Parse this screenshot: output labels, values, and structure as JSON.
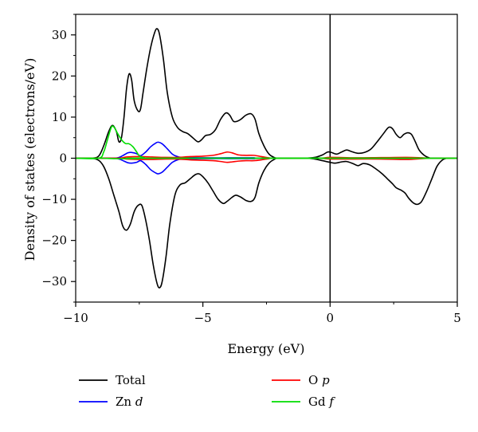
{
  "chart_data": {
    "type": "line",
    "xlabel": "Energy (eV)",
    "ylabel": "Density of states (electrons/eV)",
    "xlim": [
      -10,
      5
    ],
    "ylim": [
      -35,
      35
    ],
    "x_ticks": [
      -10,
      -5,
      0,
      5
    ],
    "y_ticks": [
      -30,
      -20,
      -10,
      0,
      10,
      20,
      30
    ],
    "vertical_line_x": 0,
    "legend": {
      "placement": "bottom",
      "entries": [
        {
          "label": "Total",
          "color": "#000000"
        },
        {
          "label": "Zn d",
          "label_text": "Zn ",
          "label_italic": "d",
          "color": "#0000ff"
        },
        {
          "label": "O p",
          "label_text": "O ",
          "label_italic": "p",
          "color": "#ff0000"
        },
        {
          "label": "Gd f",
          "label_text": "Gd ",
          "label_italic": "f",
          "color": "#00dd00"
        }
      ]
    },
    "series": [
      {
        "name": "Total",
        "color": "#000000",
        "up": [
          [
            -10,
            0
          ],
          [
            -9.4,
            0
          ],
          [
            -9.1,
            0.5
          ],
          [
            -8.9,
            3
          ],
          [
            -8.7,
            6.5
          ],
          [
            -8.55,
            8
          ],
          [
            -8.4,
            6.5
          ],
          [
            -8.3,
            4
          ],
          [
            -8.2,
            5
          ],
          [
            -8.1,
            10
          ],
          [
            -8.0,
            17
          ],
          [
            -7.9,
            20.5
          ],
          [
            -7.8,
            19
          ],
          [
            -7.7,
            14
          ],
          [
            -7.55,
            11.5
          ],
          [
            -7.45,
            12
          ],
          [
            -7.35,
            16
          ],
          [
            -7.2,
            22
          ],
          [
            -7.05,
            27
          ],
          [
            -6.9,
            30.5
          ],
          [
            -6.8,
            31.5
          ],
          [
            -6.7,
            30
          ],
          [
            -6.55,
            24
          ],
          [
            -6.4,
            16
          ],
          [
            -6.2,
            10
          ],
          [
            -6.0,
            7.5
          ],
          [
            -5.8,
            6.5
          ],
          [
            -5.6,
            6
          ],
          [
            -5.4,
            5
          ],
          [
            -5.2,
            4
          ],
          [
            -5.05,
            4.5
          ],
          [
            -4.9,
            5.5
          ],
          [
            -4.7,
            5.8
          ],
          [
            -4.5,
            7
          ],
          [
            -4.3,
            9.5
          ],
          [
            -4.1,
            11
          ],
          [
            -3.95,
            10.5
          ],
          [
            -3.8,
            9
          ],
          [
            -3.65,
            9
          ],
          [
            -3.5,
            9.5
          ],
          [
            -3.3,
            10.5
          ],
          [
            -3.1,
            10.8
          ],
          [
            -2.95,
            9.5
          ],
          [
            -2.8,
            6
          ],
          [
            -2.6,
            3
          ],
          [
            -2.4,
            1
          ],
          [
            -2.2,
            0.2
          ],
          [
            -2.0,
            0
          ],
          [
            -1.0,
            0
          ],
          [
            -0.6,
            0.2
          ],
          [
            -0.3,
            0.8
          ],
          [
            -0.1,
            1.5
          ],
          [
            0.05,
            1.4
          ],
          [
            0.25,
            1
          ],
          [
            0.45,
            1.5
          ],
          [
            0.65,
            2
          ],
          [
            0.85,
            1.6
          ],
          [
            1.1,
            1.2
          ],
          [
            1.35,
            1.4
          ],
          [
            1.6,
            2.2
          ],
          [
            1.85,
            4
          ],
          [
            2.1,
            6
          ],
          [
            2.3,
            7.5
          ],
          [
            2.45,
            7.2
          ],
          [
            2.6,
            5.8
          ],
          [
            2.75,
            5
          ],
          [
            2.9,
            5.8
          ],
          [
            3.05,
            6.2
          ],
          [
            3.2,
            5.8
          ],
          [
            3.35,
            4
          ],
          [
            3.5,
            2
          ],
          [
            3.7,
            0.7
          ],
          [
            3.9,
            0.1
          ],
          [
            4.1,
            0
          ],
          [
            5,
            0
          ]
        ],
        "down": [
          [
            -10,
            0
          ],
          [
            -9.4,
            0
          ],
          [
            -9.1,
            -0.5
          ],
          [
            -8.9,
            -2
          ],
          [
            -8.7,
            -5
          ],
          [
            -8.5,
            -9
          ],
          [
            -8.3,
            -13
          ],
          [
            -8.15,
            -16.5
          ],
          [
            -8.0,
            -17.5
          ],
          [
            -7.85,
            -16
          ],
          [
            -7.7,
            -13
          ],
          [
            -7.55,
            -11.5
          ],
          [
            -7.4,
            -11.5
          ],
          [
            -7.25,
            -15
          ],
          [
            -7.1,
            -20
          ],
          [
            -6.95,
            -26
          ],
          [
            -6.8,
            -30.5
          ],
          [
            -6.7,
            -31.5
          ],
          [
            -6.6,
            -30
          ],
          [
            -6.45,
            -24
          ],
          [
            -6.3,
            -16
          ],
          [
            -6.1,
            -9
          ],
          [
            -5.9,
            -6.5
          ],
          [
            -5.7,
            -6
          ],
          [
            -5.5,
            -5
          ],
          [
            -5.3,
            -4
          ],
          [
            -5.15,
            -3.8
          ],
          [
            -5.0,
            -4.5
          ],
          [
            -4.8,
            -6
          ],
          [
            -4.6,
            -8
          ],
          [
            -4.4,
            -10
          ],
          [
            -4.2,
            -11
          ],
          [
            -4.05,
            -10.5
          ],
          [
            -3.85,
            -9.5
          ],
          [
            -3.7,
            -9
          ],
          [
            -3.5,
            -9.5
          ],
          [
            -3.3,
            -10.3
          ],
          [
            -3.1,
            -10.5
          ],
          [
            -2.95,
            -9.5
          ],
          [
            -2.8,
            -6
          ],
          [
            -2.6,
            -3
          ],
          [
            -2.4,
            -1.2
          ],
          [
            -2.2,
            -0.3
          ],
          [
            -2.0,
            0
          ],
          [
            -1.0,
            0
          ],
          [
            -0.6,
            -0.2
          ],
          [
            -0.3,
            -0.6
          ],
          [
            0.0,
            -1
          ],
          [
            0.2,
            -1.2
          ],
          [
            0.45,
            -0.9
          ],
          [
            0.65,
            -0.8
          ],
          [
            0.9,
            -1.3
          ],
          [
            1.1,
            -1.8
          ],
          [
            1.3,
            -1.3
          ],
          [
            1.55,
            -1.6
          ],
          [
            1.8,
            -2.6
          ],
          [
            2.05,
            -3.8
          ],
          [
            2.25,
            -5
          ],
          [
            2.45,
            -6.2
          ],
          [
            2.6,
            -7.2
          ],
          [
            2.8,
            -7.8
          ],
          [
            2.95,
            -8.5
          ],
          [
            3.1,
            -9.8
          ],
          [
            3.3,
            -11
          ],
          [
            3.45,
            -11.2
          ],
          [
            3.6,
            -10.5
          ],
          [
            3.8,
            -8
          ],
          [
            4.0,
            -5
          ],
          [
            4.2,
            -2
          ],
          [
            4.4,
            -0.5
          ],
          [
            4.6,
            0
          ],
          [
            5,
            0
          ]
        ]
      },
      {
        "name": "Zn d",
        "color": "#0000ff",
        "up": [
          [
            -10,
            0
          ],
          [
            -8.6,
            0
          ],
          [
            -8.3,
            0.2
          ],
          [
            -8.1,
            0.8
          ],
          [
            -7.95,
            1.3
          ],
          [
            -7.8,
            1.4
          ],
          [
            -7.6,
            1.1
          ],
          [
            -7.45,
            0.6
          ],
          [
            -7.25,
            1.5
          ],
          [
            -7.05,
            2.8
          ],
          [
            -6.85,
            3.7
          ],
          [
            -6.75,
            3.9
          ],
          [
            -6.6,
            3.5
          ],
          [
            -6.4,
            2.3
          ],
          [
            -6.2,
            1
          ],
          [
            -6.0,
            0.4
          ],
          [
            -5.8,
            0.2
          ],
          [
            -5.0,
            0.1
          ],
          [
            -4.0,
            0.1
          ],
          [
            -3.0,
            0.1
          ],
          [
            -2.5,
            0
          ],
          [
            5,
            0
          ]
        ],
        "down": [
          [
            -10,
            0
          ],
          [
            -8.6,
            0
          ],
          [
            -8.3,
            -0.2
          ],
          [
            -8.1,
            -0.7
          ],
          [
            -7.95,
            -1.1
          ],
          [
            -7.8,
            -1.2
          ],
          [
            -7.6,
            -1.0
          ],
          [
            -7.45,
            -0.6
          ],
          [
            -7.25,
            -1.5
          ],
          [
            -7.05,
            -2.8
          ],
          [
            -6.85,
            -3.6
          ],
          [
            -6.75,
            -3.8
          ],
          [
            -6.6,
            -3.4
          ],
          [
            -6.4,
            -2.2
          ],
          [
            -6.2,
            -1
          ],
          [
            -6.0,
            -0.4
          ],
          [
            -5.8,
            -0.2
          ],
          [
            -5.0,
            -0.1
          ],
          [
            -4.0,
            -0.1
          ],
          [
            -3.0,
            -0.1
          ],
          [
            -2.5,
            0
          ],
          [
            5,
            0
          ]
        ]
      },
      {
        "name": "O p",
        "color": "#ff0000",
        "up": [
          [
            -10,
            0
          ],
          [
            -8.4,
            0
          ],
          [
            -8.0,
            0.3
          ],
          [
            -7.5,
            0.4
          ],
          [
            -7.0,
            0.3
          ],
          [
            -6.5,
            0.2
          ],
          [
            -6.0,
            0.2
          ],
          [
            -5.5,
            0.4
          ],
          [
            -5.0,
            0.5
          ],
          [
            -4.6,
            0.7
          ],
          [
            -4.3,
            1.1
          ],
          [
            -4.05,
            1.5
          ],
          [
            -3.85,
            1.3
          ],
          [
            -3.6,
            0.8
          ],
          [
            -3.3,
            0.7
          ],
          [
            -3.0,
            0.7
          ],
          [
            -2.7,
            0.4
          ],
          [
            -2.4,
            0.1
          ],
          [
            -2.2,
            0
          ],
          [
            -0.5,
            0
          ],
          [
            0,
            0.2
          ],
          [
            1,
            0.1
          ],
          [
            2,
            0.15
          ],
          [
            3,
            0.2
          ],
          [
            3.6,
            0.1
          ],
          [
            4,
            0
          ],
          [
            5,
            0
          ]
        ],
        "down": [
          [
            -10,
            0
          ],
          [
            -8.4,
            0
          ],
          [
            -8.0,
            -0.2
          ],
          [
            -7.5,
            -0.3
          ],
          [
            -7.0,
            -0.3
          ],
          [
            -6.5,
            -0.2
          ],
          [
            -6.0,
            -0.2
          ],
          [
            -5.5,
            -0.4
          ],
          [
            -5.0,
            -0.5
          ],
          [
            -4.6,
            -0.6
          ],
          [
            -4.3,
            -0.8
          ],
          [
            -4.05,
            -1.0
          ],
          [
            -3.85,
            -0.9
          ],
          [
            -3.6,
            -0.7
          ],
          [
            -3.3,
            -0.6
          ],
          [
            -3.0,
            -0.6
          ],
          [
            -2.7,
            -0.4
          ],
          [
            -2.4,
            -0.1
          ],
          [
            -2.2,
            0
          ],
          [
            -0.5,
            0
          ],
          [
            0,
            -0.2
          ],
          [
            1,
            -0.2
          ],
          [
            2,
            -0.2
          ],
          [
            3,
            -0.3
          ],
          [
            3.6,
            -0.1
          ],
          [
            4,
            0
          ],
          [
            5,
            0
          ]
        ]
      },
      {
        "name": "Gd f",
        "color": "#00dd00",
        "up": [
          [
            -10,
            0
          ],
          [
            -9.1,
            0
          ],
          [
            -8.9,
            1.5
          ],
          [
            -8.75,
            4.5
          ],
          [
            -8.6,
            7.5
          ],
          [
            -8.5,
            7.6
          ],
          [
            -8.35,
            6
          ],
          [
            -8.2,
            4.5
          ],
          [
            -8.05,
            3.6
          ],
          [
            -7.9,
            3.5
          ],
          [
            -7.75,
            2.8
          ],
          [
            -7.6,
            1.5
          ],
          [
            -7.5,
            0.6
          ],
          [
            -7.3,
            0.1
          ],
          [
            -7.0,
            0
          ],
          [
            5,
            0
          ]
        ],
        "down": [
          [
            -10,
            0
          ],
          [
            -9.0,
            0
          ],
          [
            -8.5,
            -0.1
          ],
          [
            -8.0,
            -0.1
          ],
          [
            -7.5,
            -0.1
          ],
          [
            -7.0,
            0
          ],
          [
            5,
            0
          ]
        ]
      }
    ]
  }
}
